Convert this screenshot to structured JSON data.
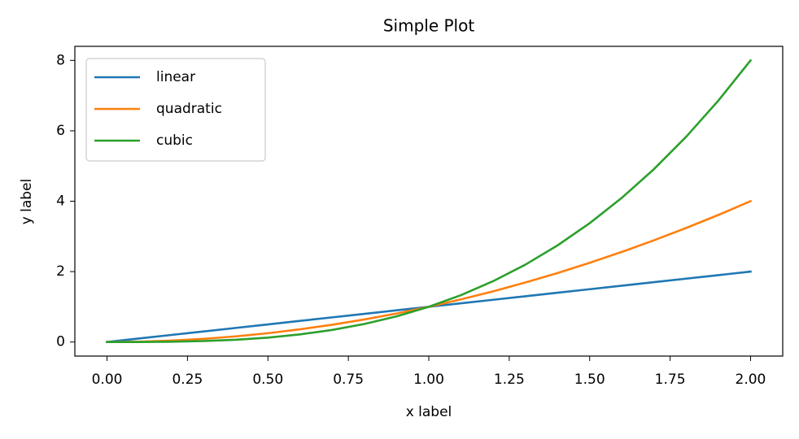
{
  "chart_data": {
    "type": "line",
    "title": "Simple Plot",
    "x_label": "x label",
    "y_label": "y label",
    "x": [
      0,
      0.1,
      0.2,
      0.3,
      0.4,
      0.5,
      0.6,
      0.7,
      0.8,
      0.9,
      1,
      1.1,
      1.2,
      1.3,
      1.4,
      1.5,
      1.6,
      1.7,
      1.8,
      1.9,
      2
    ],
    "series": [
      {
        "name": "linear",
        "color": "#1f77b4",
        "values": [
          0,
          0.1,
          0.2,
          0.3,
          0.4,
          0.5,
          0.6,
          0.7,
          0.8,
          0.9,
          1,
          1.1,
          1.2,
          1.3,
          1.4,
          1.5,
          1.6,
          1.7,
          1.8,
          1.9,
          2
        ]
      },
      {
        "name": "quadratic",
        "color": "#ff7f0e",
        "values": [
          0,
          0.01,
          0.04,
          0.09,
          0.16,
          0.25,
          0.36,
          0.49,
          0.64,
          0.81,
          1,
          1.21,
          1.44,
          1.69,
          1.96,
          2.25,
          2.56,
          2.89,
          3.24,
          3.61,
          4
        ]
      },
      {
        "name": "cubic",
        "color": "#2ca02c",
        "values": [
          0,
          0.001,
          0.008,
          0.027,
          0.064,
          0.125,
          0.216,
          0.343,
          0.512,
          0.729,
          1,
          1.331,
          1.728,
          2.197,
          2.744,
          3.375,
          4.096,
          4.913,
          5.832,
          6.859,
          8
        ]
      }
    ],
    "xlim": [
      -0.1,
      2.1
    ],
    "xticks": [
      {
        "value": 0,
        "label": "0.00"
      },
      {
        "value": 0.25,
        "label": "0.25"
      },
      {
        "value": 0.5,
        "label": "0.50"
      },
      {
        "value": 0.75,
        "label": "0.75"
      },
      {
        "value": 1,
        "label": "1.00"
      },
      {
        "value": 1.25,
        "label": "1.25"
      },
      {
        "value": 1.5,
        "label": "1.50"
      },
      {
        "value": 1.75,
        "label": "1.75"
      },
      {
        "value": 2,
        "label": "2.00"
      }
    ],
    "ylim": [
      -0.4,
      8.4
    ],
    "yticks": [
      0,
      2,
      4,
      6,
      8
    ],
    "grid": false,
    "legend": "upper-left"
  }
}
